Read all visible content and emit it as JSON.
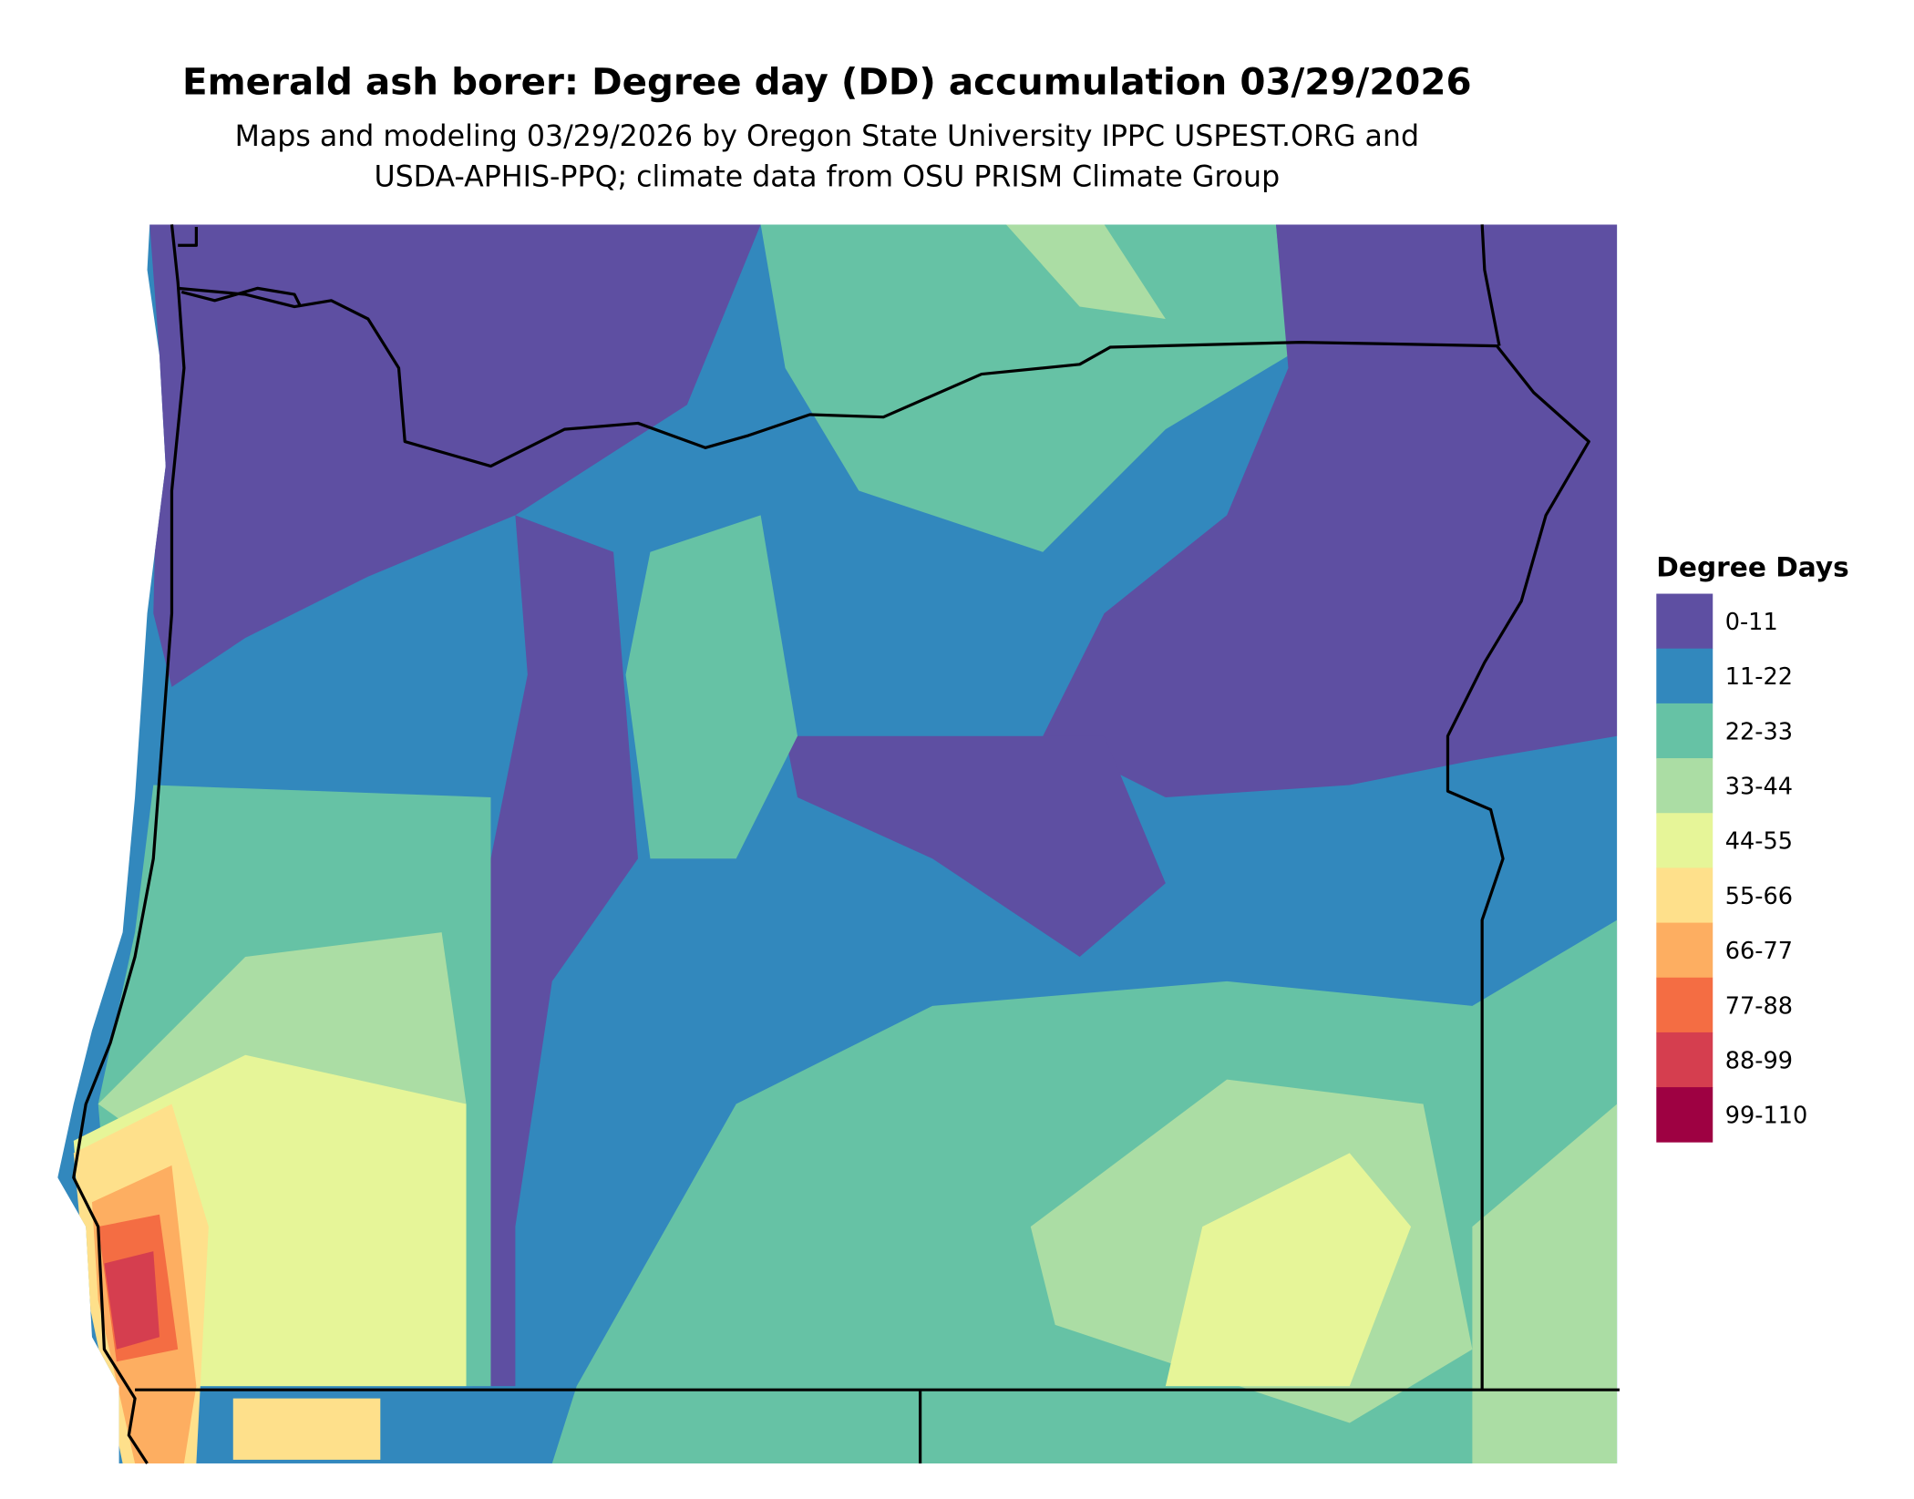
{
  "header": {
    "title": "Emerald ash borer: Degree day (DD) accumulation 03/29/2026",
    "subtitle": [
      "Maps and modeling 03/29/2026 by Oregon State University IPPC USPEST.ORG and",
      "USDA-APHIS-PPQ; climate data from OSU PRISM Climate Group"
    ]
  },
  "legend": {
    "title": "Degree Days",
    "items": [
      {
        "label": "0-11",
        "color": "#5e4fa2"
      },
      {
        "label": "11-22",
        "color": "#3288bd"
      },
      {
        "label": "22-33",
        "color": "#66c2a5"
      },
      {
        "label": "33-44",
        "color": "#abdda4"
      },
      {
        "label": "44-55",
        "color": "#e6f598"
      },
      {
        "label": "55-66",
        "color": "#fee08b"
      },
      {
        "label": "66-77",
        "color": "#fdae61"
      },
      {
        "label": "77-88",
        "color": "#f46d43"
      },
      {
        "label": "88-99",
        "color": "#d53e4f"
      },
      {
        "label": "99-110",
        "color": "#9e0142"
      }
    ]
  }
}
